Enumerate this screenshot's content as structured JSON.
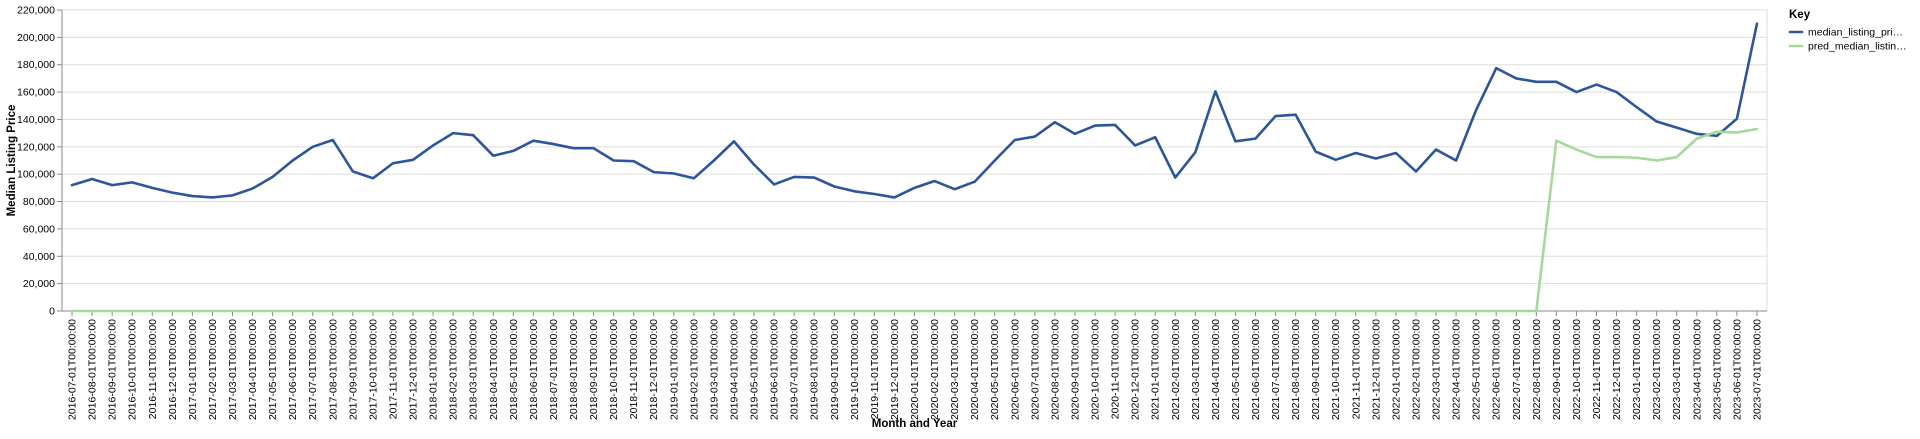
{
  "chart_data": {
    "type": "line",
    "xlabel": "Month and Year",
    "ylabel": "Median Listing Price",
    "ylim": [
      0,
      220000
    ],
    "yticks": [
      0,
      20000,
      40000,
      60000,
      80000,
      100000,
      120000,
      140000,
      160000,
      180000,
      200000,
      220000
    ],
    "ytick_labels": [
      "0",
      "20,000",
      "40,000",
      "60,000",
      "80,000",
      "100,000",
      "120,000",
      "140,000",
      "160,000",
      "180,000",
      "200,000",
      "220,000"
    ],
    "grid": true,
    "legend": {
      "title": "Key",
      "position": "top-right"
    },
    "x": [
      "2016-07-01T00:00:00",
      "2016-08-01T00:00:00",
      "2016-09-01T00:00:00",
      "2016-10-01T00:00:00",
      "2016-11-01T00:00:00",
      "2016-12-01T00:00:00",
      "2017-01-01T00:00:00",
      "2017-02-01T00:00:00",
      "2017-03-01T00:00:00",
      "2017-04-01T00:00:00",
      "2017-05-01T00:00:00",
      "2017-06-01T00:00:00",
      "2017-07-01T00:00:00",
      "2017-08-01T00:00:00",
      "2017-09-01T00:00:00",
      "2017-10-01T00:00:00",
      "2017-11-01T00:00:00",
      "2017-12-01T00:00:00",
      "2018-01-01T00:00:00",
      "2018-02-01T00:00:00",
      "2018-03-01T00:00:00",
      "2018-04-01T00:00:00",
      "2018-05-01T00:00:00",
      "2018-06-01T00:00:00",
      "2018-07-01T00:00:00",
      "2018-08-01T00:00:00",
      "2018-09-01T00:00:00",
      "2018-10-01T00:00:00",
      "2018-11-01T00:00:00",
      "2018-12-01T00:00:00",
      "2019-01-01T00:00:00",
      "2019-02-01T00:00:00",
      "2019-03-01T00:00:00",
      "2019-04-01T00:00:00",
      "2019-05-01T00:00:00",
      "2019-06-01T00:00:00",
      "2019-07-01T00:00:00",
      "2019-08-01T00:00:00",
      "2019-09-01T00:00:00",
      "2019-10-01T00:00:00",
      "2019-11-01T00:00:00",
      "2019-12-01T00:00:00",
      "2020-01-01T00:00:00",
      "2020-02-01T00:00:00",
      "2020-03-01T00:00:00",
      "2020-04-01T00:00:00",
      "2020-05-01T00:00:00",
      "2020-06-01T00:00:00",
      "2020-07-01T00:00:00",
      "2020-08-01T00:00:00",
      "2020-09-01T00:00:00",
      "2020-10-01T00:00:00",
      "2020-11-01T00:00:00",
      "2020-12-01T00:00:00",
      "2021-01-01T00:00:00",
      "2021-02-01T00:00:00",
      "2021-03-01T00:00:00",
      "2021-04-01T00:00:00",
      "2021-05-01T00:00:00",
      "2021-06-01T00:00:00",
      "2021-07-01T00:00:00",
      "2021-08-01T00:00:00",
      "2021-09-01T00:00:00",
      "2021-10-01T00:00:00",
      "2021-11-01T00:00:00",
      "2021-12-01T00:00:00",
      "2022-01-01T00:00:00",
      "2022-02-01T00:00:00",
      "2022-03-01T00:00:00",
      "2022-04-01T00:00:00",
      "2022-05-01T00:00:00",
      "2022-06-01T00:00:00",
      "2022-07-01T00:00:00",
      "2022-08-01T00:00:00",
      "2022-09-01T00:00:00",
      "2022-10-01T00:00:00",
      "2022-11-01T00:00:00",
      "2022-12-01T00:00:00",
      "2023-01-01T00:00:00",
      "2023-02-01T00:00:00",
      "2023-03-01T00:00:00",
      "2023-04-01T00:00:00",
      "2023-05-01T00:00:00",
      "2023-06-01T00:00:00",
      "2023-07-01T00:00:00"
    ],
    "series": [
      {
        "name": "median_listing_pri…",
        "color": "#2c559b",
        "values": [
          92000,
          96500,
          92000,
          94000,
          90000,
          86500,
          84000,
          83000,
          84500,
          89500,
          98000,
          110000,
          120000,
          125000,
          102000,
          97000,
          108000,
          110500,
          121000,
          130000,
          128500,
          113500,
          117000,
          124500,
          122000,
          119000,
          119000,
          110000,
          109500,
          101500,
          100500,
          97000,
          110000,
          124000,
          107000,
          92500,
          98000,
          97500,
          91000,
          87500,
          85500,
          83000,
          90000,
          95000,
          89000,
          94500,
          110000,
          125000,
          127500,
          138000,
          129500,
          135500,
          136000,
          121000,
          127000,
          97500,
          116000,
          160500,
          124000,
          126000,
          142500,
          143500,
          116500,
          110500,
          115500,
          111500,
          115500,
          102000,
          118000,
          110000,
          147000,
          177500,
          170000,
          167500,
          167500,
          160000,
          165500,
          160000,
          149000,
          138500,
          134000,
          129500,
          128000,
          140500,
          210000
        ]
      },
      {
        "name": "pred_median_listin…",
        "color": "#a5d99a",
        "values": [
          0,
          0,
          0,
          0,
          0,
          0,
          0,
          0,
          0,
          0,
          0,
          0,
          0,
          0,
          0,
          0,
          0,
          0,
          0,
          0,
          0,
          0,
          0,
          0,
          0,
          0,
          0,
          0,
          0,
          0,
          0,
          0,
          0,
          0,
          0,
          0,
          0,
          0,
          0,
          0,
          0,
          0,
          0,
          0,
          0,
          0,
          0,
          0,
          0,
          0,
          0,
          0,
          0,
          0,
          0,
          0,
          0,
          0,
          0,
          0,
          0,
          0,
          0,
          0,
          0,
          0,
          0,
          0,
          0,
          0,
          0,
          0,
          0,
          0,
          124500,
          118000,
          112500,
          112500,
          112000,
          110000,
          112500,
          126000,
          131000,
          130500,
          133000
        ]
      }
    ]
  }
}
